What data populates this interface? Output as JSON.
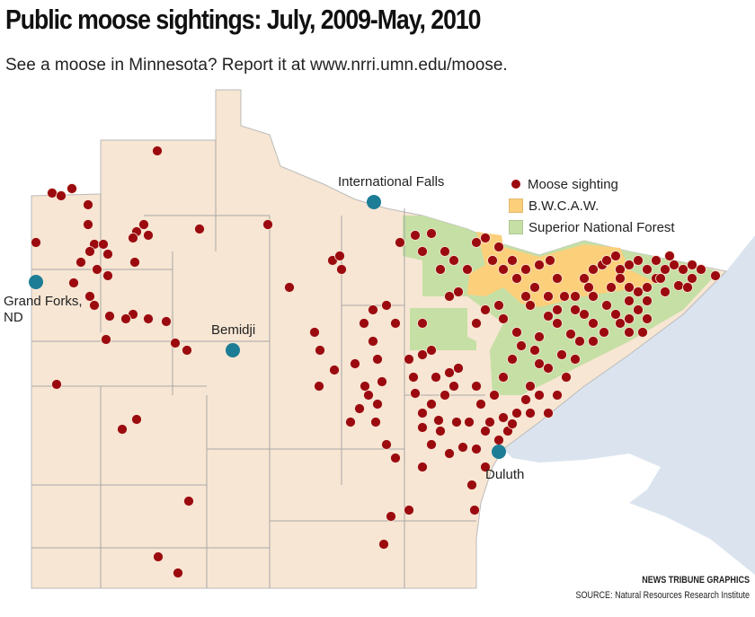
{
  "header": {
    "title": "Public moose sightings: July, 2009-May, 2010",
    "subtitle": "See a moose in Minnesota? Report it at www.nrri.umn.edu/moose."
  },
  "legend": {
    "items": [
      {
        "label": "Moose sighting",
        "color": "#9b0a0f",
        "icon": "dot"
      },
      {
        "label": "B.W.C.A.W.",
        "color": "#fccf7b",
        "icon": "square"
      },
      {
        "label": "Superior National Forest",
        "color": "#c5dfa5",
        "icon": "square"
      }
    ]
  },
  "cities": [
    {
      "name": "International Falls"
    },
    {
      "name": "Grand Forks,",
      "name2": "ND"
    },
    {
      "name": "Bemidji"
    },
    {
      "name": "Duluth"
    }
  ],
  "colors": {
    "land": "#f7e6d3",
    "water": "#dbe4ee",
    "county_lines": "#9b9b9b",
    "city_marker": "#1d7d96",
    "sighting": "#9b0a0f"
  },
  "credit": {
    "line1": "NEWS TRIBUNE GRAPHICS",
    "line2": "SOURCE: Natural Resources Research Institute"
  }
}
